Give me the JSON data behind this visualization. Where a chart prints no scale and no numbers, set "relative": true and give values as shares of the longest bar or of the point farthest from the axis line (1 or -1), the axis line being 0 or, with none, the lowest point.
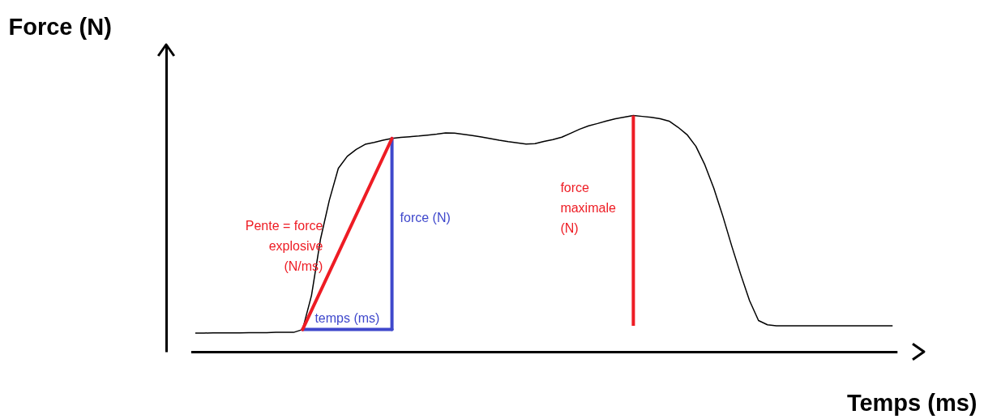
{
  "chart_data": {
    "type": "line",
    "relative": true,
    "xlabel": "Temps (ms)",
    "ylabel": "Force (N)",
    "categories": [
      null,
      null,
      null,
      null,
      null,
      null,
      null,
      null,
      null,
      null,
      null,
      null,
      null,
      null,
      null,
      null,
      null,
      null,
      null,
      null,
      null,
      null,
      null,
      null,
      null,
      null,
      null,
      null,
      null,
      null,
      null,
      null,
      null,
      null,
      null,
      null,
      null,
      null,
      null,
      null,
      null,
      null,
      null,
      null,
      null,
      null,
      null,
      null,
      null,
      null,
      null,
      null,
      null,
      null,
      null,
      null,
      null,
      null,
      null,
      null,
      null,
      null,
      null,
      null,
      null,
      null,
      null,
      null,
      null,
      null,
      null,
      null,
      null,
      null,
      null,
      null,
      null,
      null,
      null
    ],
    "series": [
      {
        "color": "#000000",
        "values": [
          0.079,
          0.079,
          0.08,
          0.08,
          0.08,
          0.08,
          0.081,
          0.081,
          0.081,
          0.082,
          0.082,
          0.082,
          0.094,
          0.238,
          0.475,
          0.642,
          0.776,
          0.827,
          0.856,
          0.878,
          0.886,
          0.895,
          0.903,
          0.907,
          0.91,
          0.913,
          0.917,
          0.921,
          0.926,
          0.925,
          0.92,
          0.915,
          0.909,
          0.902,
          0.895,
          0.889,
          0.884,
          0.879,
          0.881,
          0.89,
          0.898,
          0.908,
          0.925,
          0.942,
          0.956,
          0.966,
          0.977,
          0.986,
          0.993,
          1.0,
          0.996,
          0.992,
          0.986,
          0.976,
          0.95,
          0.919,
          0.869,
          0.791,
          0.692,
          0.575,
          0.448,
          0.328,
          0.216,
          0.132,
          0.114,
          0.11,
          0.11,
          0.11,
          0.11,
          0.11,
          0.11,
          0.11,
          0.11,
          0.11,
          0.11,
          0.11,
          0.11,
          0.11,
          0.11
        ]
      }
    ],
    "annotations": [
      "Pente = force\nexplosive\n(N/ms)",
      "force (N)",
      "temps (ms)",
      "force\nmaximale\n(N)"
    ]
  }
}
